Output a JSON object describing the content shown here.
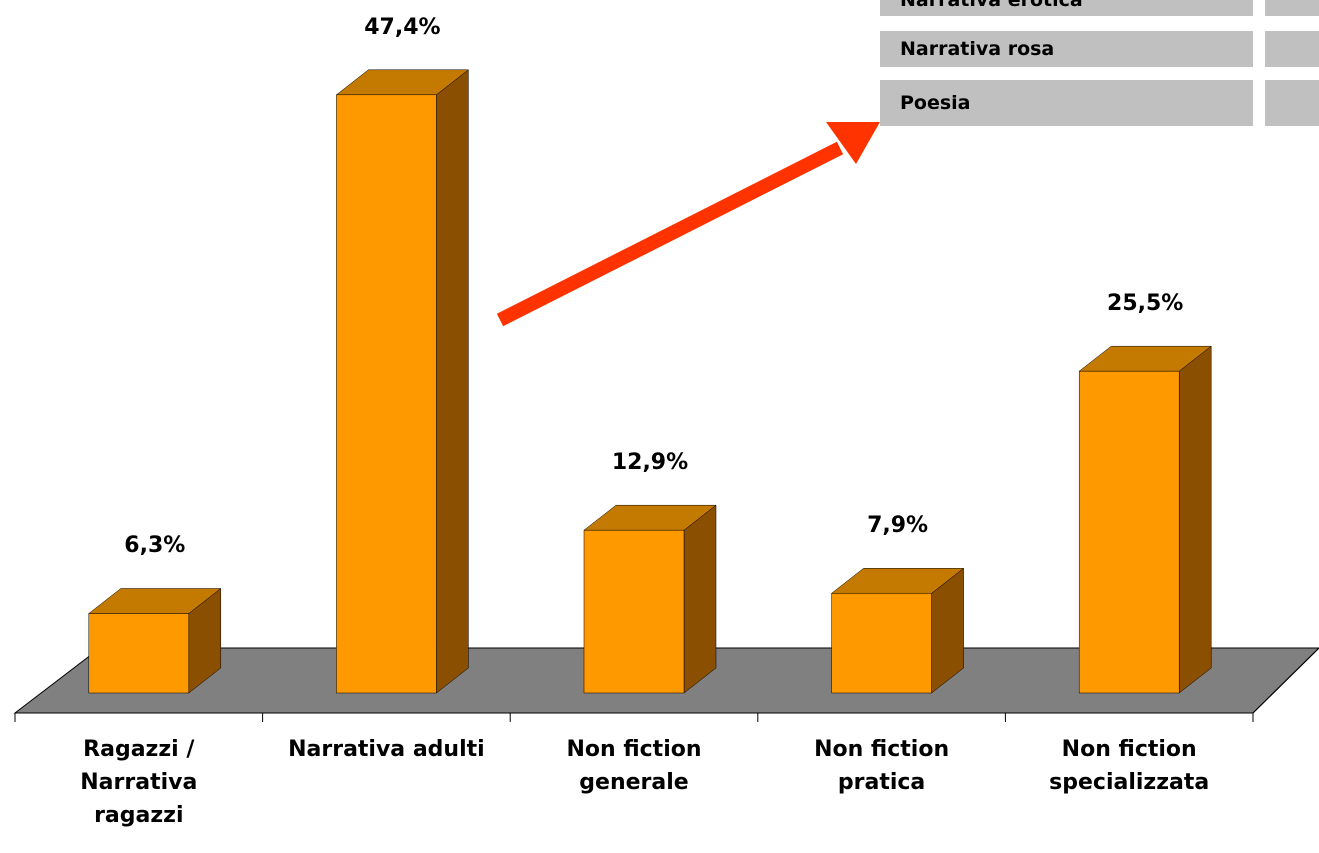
{
  "chart_data": {
    "type": "bar3d",
    "categories": [
      "Ragazzi /\nNarrativa\nragazzi",
      "Narrativa adulti",
      "Non fiction\ngenerale",
      "Non fiction\npratica",
      "Non fiction\nspecializzata"
    ],
    "values": [
      6.3,
      47.4,
      12.9,
      7.9,
      25.5
    ],
    "value_labels": [
      "6,3%",
      "47,4%",
      "12,9%",
      "7,9%",
      "25,5%"
    ],
    "color": "#ff9900",
    "annotations": [
      "Narrativa erotica",
      "Narrativa rosa",
      "Poesia"
    ]
  }
}
